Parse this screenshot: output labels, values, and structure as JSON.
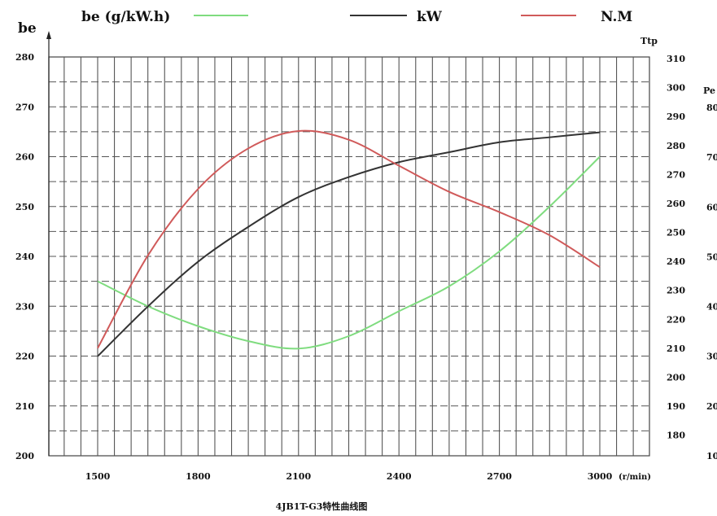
{
  "chart_data": {
    "type": "line",
    "title": "4JB1T-G3特性曲线图",
    "x_unit": "(r/min)",
    "x_ticks": [
      1500,
      1800,
      2100,
      2400,
      2700,
      3000
    ],
    "left_axis": {
      "label": "be",
      "ticks": [
        200,
        210,
        220,
        230,
        240,
        250,
        260,
        270,
        280
      ],
      "range": [
        200,
        280
      ]
    },
    "torque_axis": {
      "label": "Ttp",
      "ticks": [
        180,
        190,
        200,
        210,
        220,
        230,
        240,
        250,
        260,
        270,
        280,
        290,
        300,
        310
      ],
      "range": [
        180,
        310
      ]
    },
    "power_axis": {
      "label": "Pe",
      "ticks": [
        "10",
        "20",
        "30",
        "40",
        "50",
        "60",
        "70",
        "80"
      ],
      "range": [
        10,
        80
      ]
    },
    "legend": [
      {
        "key": "be",
        "label": "be (g/kW.h)",
        "color": "#7fdc7f"
      },
      {
        "key": "kw",
        "label": "kW",
        "color": "#333333"
      },
      {
        "key": "nm",
        "label": "N.M",
        "color": "#d05a5a"
      }
    ],
    "series": [
      {
        "name": "be (g/kW.h)",
        "axis": "left",
        "color": "#7fdc7f",
        "points": [
          [
            1500,
            235
          ],
          [
            1650,
            230
          ],
          [
            1800,
            226
          ],
          [
            1950,
            223
          ],
          [
            2100,
            221.5
          ],
          [
            2250,
            224
          ],
          [
            2400,
            229
          ],
          [
            2550,
            234
          ],
          [
            2700,
            241
          ],
          [
            2850,
            250
          ],
          [
            3000,
            260
          ]
        ]
      },
      {
        "name": "kW",
        "axis": "power",
        "color": "#333333",
        "points": [
          [
            1500,
            30
          ],
          [
            1650,
            40
          ],
          [
            1800,
            49
          ],
          [
            1950,
            56
          ],
          [
            2100,
            62
          ],
          [
            2250,
            66
          ],
          [
            2400,
            69
          ],
          [
            2550,
            71
          ],
          [
            2700,
            73
          ],
          [
            2850,
            74
          ],
          [
            3000,
            75
          ]
        ]
      },
      {
        "name": "N.M",
        "axis": "torque",
        "color": "#d05a5a",
        "points": [
          [
            1500,
            210
          ],
          [
            1650,
            242
          ],
          [
            1800,
            265
          ],
          [
            1950,
            279
          ],
          [
            2100,
            285
          ],
          [
            2250,
            282
          ],
          [
            2400,
            273
          ],
          [
            2550,
            264
          ],
          [
            2700,
            257
          ],
          [
            2850,
            249
          ],
          [
            3000,
            238
          ]
        ]
      }
    ],
    "grid": true
  }
}
